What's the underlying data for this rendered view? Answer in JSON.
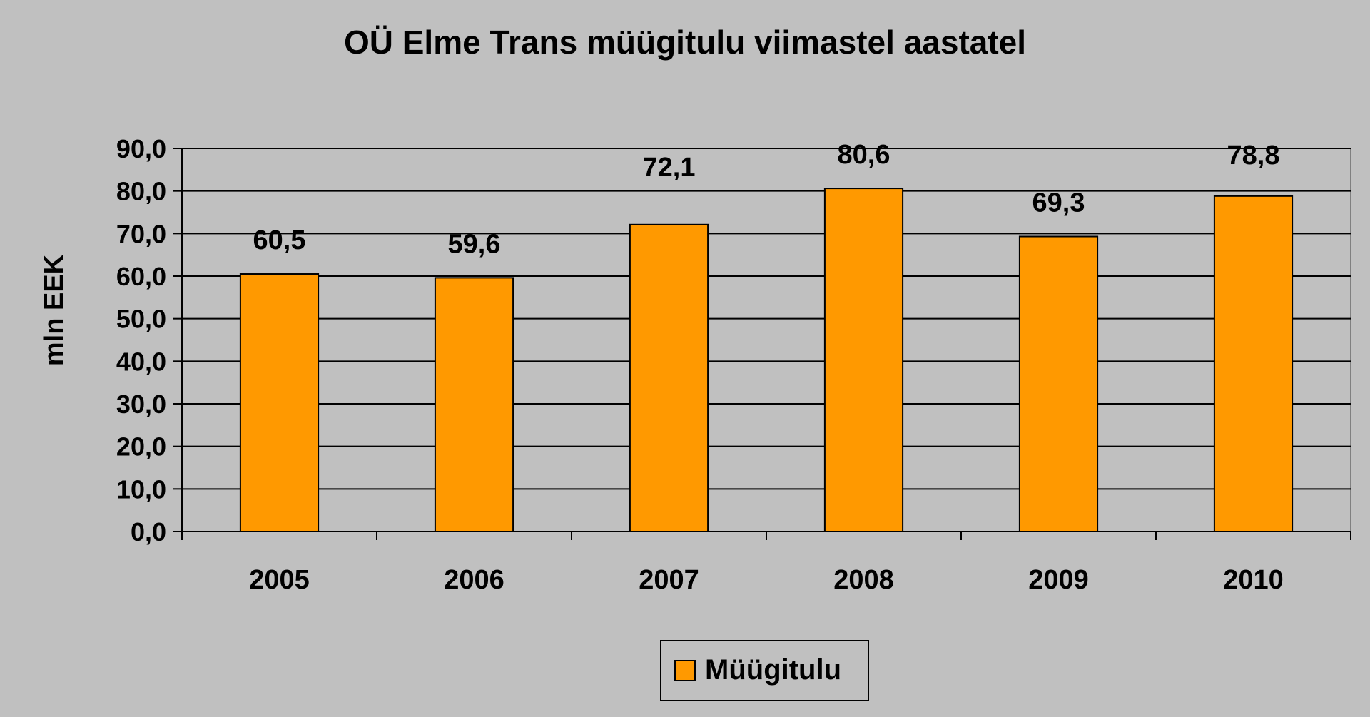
{
  "chart_data": {
    "type": "bar",
    "title": "OÜ Elme Trans müügitulu viimastel aastatel",
    "xlabel": "",
    "ylabel": "mln EEK",
    "categories": [
      "2005",
      "2006",
      "2007",
      "2008",
      "2009",
      "2010"
    ],
    "series": [
      {
        "name": "Müügitulu",
        "values": [
          60.5,
          59.6,
          72.1,
          80.6,
          69.3,
          78.8
        ],
        "value_labels": [
          "60,5",
          "59,6",
          "72,1",
          "80,6",
          "69,3",
          "78,8"
        ],
        "color": "#ff9900"
      }
    ],
    "ylim": [
      0,
      90
    ],
    "yticks": [
      0,
      10,
      20,
      30,
      40,
      50,
      60,
      70,
      80,
      90
    ],
    "ytick_labels": [
      "0,0",
      "10,0",
      "20,0",
      "30,0",
      "40,0",
      "50,0",
      "60,0",
      "70,0",
      "80,0",
      "90,0"
    ],
    "grid": true,
    "legend_position": "bottom-center",
    "colors": {
      "background": "#c0c0c0",
      "plot_area": "#c0c0c0",
      "gridline": "#000000",
      "bar_fill": "#ff9900",
      "bar_stroke": "#000000"
    }
  }
}
